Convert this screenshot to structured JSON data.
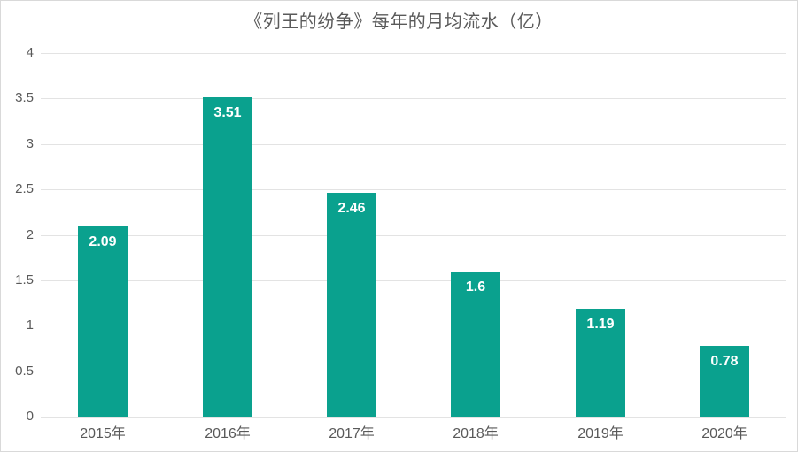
{
  "chart_data": {
    "type": "bar",
    "title": "《列王的纷争》每年的月均流水（亿）",
    "categories": [
      "2015年",
      "2016年",
      "2017年",
      "2018年",
      "2019年",
      "2020年"
    ],
    "values": [
      2.09,
      3.51,
      2.46,
      1.6,
      1.19,
      0.78
    ],
    "data_labels": [
      "2.09",
      "3.51",
      "2.46",
      "1.6",
      "1.19",
      "0.78"
    ],
    "xlabel": "",
    "ylabel": "",
    "ylim": [
      0,
      4
    ],
    "y_ticks": [
      0,
      0.5,
      1,
      1.5,
      2,
      2.5,
      3,
      3.5,
      4
    ],
    "y_tick_labels": [
      "0",
      "0.5",
      "1",
      "1.5",
      "2",
      "2.5",
      "3",
      "3.5",
      "4"
    ],
    "grid": "horizontal",
    "legend": "none",
    "colors": {
      "bar": "#0aa18e",
      "bar_value_label": "#ffffff",
      "title_text": "#5a5a5a",
      "axis_text": "#595959",
      "gridline": "#e3e3e3",
      "border": "#d9d9d9",
      "background": "#ffffff"
    }
  }
}
